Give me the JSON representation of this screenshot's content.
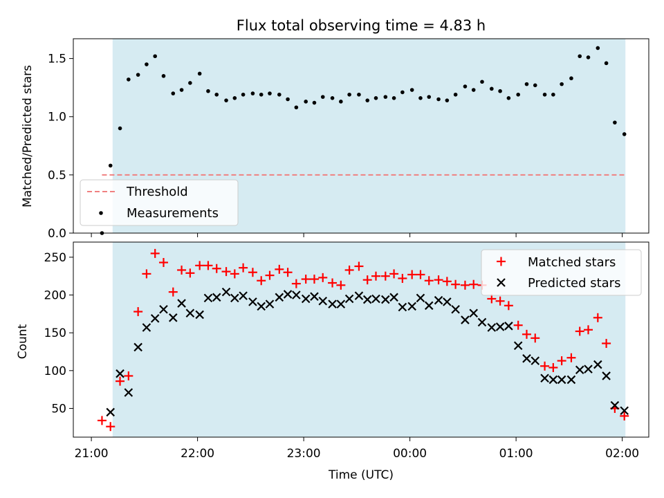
{
  "chart_data": [
    {
      "type": "scatter",
      "title": "Flux total observing time = 4.83 h",
      "xlabel": "",
      "ylabel": "Matched/Predicted stars",
      "x_unit": "hours since 21:00 UTC",
      "xlim": [
        -0.17,
        5.25
      ],
      "ylim": [
        0.0,
        1.67
      ],
      "yticks": [
        0.0,
        0.5,
        1.0,
        1.5
      ],
      "ytick_labels": [
        "0.0",
        "0.5",
        "1.0",
        "1.5"
      ],
      "observing_window": [
        0.2,
        5.03
      ],
      "legend": {
        "position": "lower-left",
        "entries": [
          "Threshold",
          "Measurements"
        ]
      },
      "threshold": {
        "name": "Threshold",
        "value": 0.5,
        "x_range": [
          0.1,
          5.03
        ],
        "color": "#f08080"
      },
      "series": [
        {
          "name": "Measurements",
          "marker": "dot",
          "color": "#000000",
          "points": [
            [
              0.1,
              0.0
            ],
            [
              0.18,
              0.58
            ],
            [
              0.27,
              0.9
            ],
            [
              0.35,
              1.32
            ],
            [
              0.44,
              1.36
            ],
            [
              0.52,
              1.45
            ],
            [
              0.6,
              1.52
            ],
            [
              0.68,
              1.35
            ],
            [
              0.77,
              1.2
            ],
            [
              0.85,
              1.23
            ],
            [
              0.93,
              1.29
            ],
            [
              1.02,
              1.37
            ],
            [
              1.1,
              1.22
            ],
            [
              1.18,
              1.19
            ],
            [
              1.27,
              1.14
            ],
            [
              1.35,
              1.16
            ],
            [
              1.43,
              1.19
            ],
            [
              1.52,
              1.2
            ],
            [
              1.6,
              1.19
            ],
            [
              1.68,
              1.2
            ],
            [
              1.77,
              1.19
            ],
            [
              1.85,
              1.15
            ],
            [
              1.93,
              1.08
            ],
            [
              2.02,
              1.13
            ],
            [
              2.1,
              1.12
            ],
            [
              2.18,
              1.17
            ],
            [
              2.27,
              1.16
            ],
            [
              2.35,
              1.13
            ],
            [
              2.43,
              1.19
            ],
            [
              2.52,
              1.19
            ],
            [
              2.6,
              1.14
            ],
            [
              2.68,
              1.16
            ],
            [
              2.77,
              1.17
            ],
            [
              2.85,
              1.16
            ],
            [
              2.93,
              1.21
            ],
            [
              3.02,
              1.23
            ],
            [
              3.1,
              1.16
            ],
            [
              3.18,
              1.17
            ],
            [
              3.27,
              1.15
            ],
            [
              3.35,
              1.14
            ],
            [
              3.43,
              1.19
            ],
            [
              3.52,
              1.26
            ],
            [
              3.6,
              1.23
            ],
            [
              3.68,
              1.3
            ],
            [
              3.77,
              1.24
            ],
            [
              3.85,
              1.22
            ],
            [
              3.93,
              1.16
            ],
            [
              4.02,
              1.19
            ],
            [
              4.1,
              1.28
            ],
            [
              4.18,
              1.27
            ],
            [
              4.27,
              1.19
            ],
            [
              4.35,
              1.19
            ],
            [
              4.43,
              1.28
            ],
            [
              4.52,
              1.33
            ],
            [
              4.6,
              1.52
            ],
            [
              4.68,
              1.51
            ],
            [
              4.77,
              1.59
            ],
            [
              4.85,
              1.46
            ],
            [
              4.93,
              0.95
            ],
            [
              5.02,
              0.85
            ]
          ]
        }
      ]
    },
    {
      "type": "scatter",
      "title": "",
      "xlabel": "Time (UTC)",
      "ylabel": "Count",
      "x_unit": "hours since 21:00 UTC",
      "xlim": [
        -0.17,
        5.25
      ],
      "ylim": [
        12,
        270
      ],
      "yticks": [
        50,
        100,
        150,
        200,
        250
      ],
      "ytick_labels": [
        "50",
        "100",
        "150",
        "200",
        "250"
      ],
      "xticks": [
        0,
        1,
        2,
        3,
        4,
        5
      ],
      "xtick_labels": [
        "21:00",
        "22:00",
        "23:00",
        "00:00",
        "01:00",
        "02:00"
      ],
      "observing_window": [
        0.2,
        5.03
      ],
      "legend": {
        "position": "upper-right",
        "entries": [
          "Matched stars",
          "Predicted stars"
        ]
      },
      "series": [
        {
          "name": "Matched stars",
          "marker": "plus",
          "color": "#ff0000",
          "points": [
            [
              0.1,
              34
            ],
            [
              0.18,
              26
            ],
            [
              0.27,
              86
            ],
            [
              0.35,
              93
            ],
            [
              0.44,
              178
            ],
            [
              0.52,
              228
            ],
            [
              0.6,
              255
            ],
            [
              0.68,
              243
            ],
            [
              0.77,
              204
            ],
            [
              0.85,
              233
            ],
            [
              0.93,
              229
            ],
            [
              1.02,
              239
            ],
            [
              1.1,
              239
            ],
            [
              1.18,
              235
            ],
            [
              1.27,
              231
            ],
            [
              1.35,
              228
            ],
            [
              1.43,
              236
            ],
            [
              1.52,
              230
            ],
            [
              1.6,
              219
            ],
            [
              1.68,
              226
            ],
            [
              1.77,
              234
            ],
            [
              1.85,
              230
            ],
            [
              1.93,
              215
            ],
            [
              2.02,
              221
            ],
            [
              2.1,
              221
            ],
            [
              2.18,
              223
            ],
            [
              2.27,
              216
            ],
            [
              2.35,
              213
            ],
            [
              2.43,
              233
            ],
            [
              2.52,
              238
            ],
            [
              2.6,
              220
            ],
            [
              2.68,
              225
            ],
            [
              2.77,
              225
            ],
            [
              2.85,
              228
            ],
            [
              2.93,
              222
            ],
            [
              3.02,
              227
            ],
            [
              3.1,
              227
            ],
            [
              3.18,
              219
            ],
            [
              3.27,
              220
            ],
            [
              3.35,
              218
            ],
            [
              3.43,
              214
            ],
            [
              3.52,
              213
            ],
            [
              3.6,
              214
            ],
            [
              3.68,
              213
            ],
            [
              3.77,
              195
            ],
            [
              3.85,
              192
            ],
            [
              3.93,
              186
            ],
            [
              4.02,
              160
            ],
            [
              4.1,
              148
            ],
            [
              4.18,
              143
            ],
            [
              4.27,
              106
            ],
            [
              4.35,
              104
            ],
            [
              4.43,
              113
            ],
            [
              4.52,
              117
            ],
            [
              4.6,
              152
            ],
            [
              4.68,
              154
            ],
            [
              4.77,
              170
            ],
            [
              4.85,
              136
            ],
            [
              4.93,
              50
            ],
            [
              5.02,
              40
            ]
          ]
        },
        {
          "name": "Predicted stars",
          "marker": "cross",
          "color": "#000000",
          "points": [
            [
              0.18,
              45
            ],
            [
              0.27,
              96
            ],
            [
              0.35,
              71
            ],
            [
              0.44,
              131
            ],
            [
              0.52,
              157
            ],
            [
              0.6,
              169
            ],
            [
              0.68,
              181
            ],
            [
              0.77,
              170
            ],
            [
              0.85,
              189
            ],
            [
              0.93,
              176
            ],
            [
              1.02,
              174
            ],
            [
              1.1,
              196
            ],
            [
              1.18,
              197
            ],
            [
              1.27,
              204
            ],
            [
              1.35,
              196
            ],
            [
              1.43,
              199
            ],
            [
              1.52,
              191
            ],
            [
              1.6,
              185
            ],
            [
              1.68,
              188
            ],
            [
              1.77,
              197
            ],
            [
              1.85,
              201
            ],
            [
              1.93,
              200
            ],
            [
              2.02,
              195
            ],
            [
              2.1,
              198
            ],
            [
              2.18,
              192
            ],
            [
              2.27,
              188
            ],
            [
              2.35,
              188
            ],
            [
              2.43,
              195
            ],
            [
              2.52,
              199
            ],
            [
              2.6,
              194
            ],
            [
              2.68,
              195
            ],
            [
              2.77,
              194
            ],
            [
              2.85,
              197
            ],
            [
              2.93,
              184
            ],
            [
              3.02,
              185
            ],
            [
              3.1,
              196
            ],
            [
              3.18,
              186
            ],
            [
              3.27,
              193
            ],
            [
              3.35,
              191
            ],
            [
              3.43,
              181
            ],
            [
              3.52,
              167
            ],
            [
              3.6,
              176
            ],
            [
              3.68,
              164
            ],
            [
              3.77,
              157
            ],
            [
              3.85,
              158
            ],
            [
              3.93,
              159
            ],
            [
              4.02,
              133
            ],
            [
              4.1,
              116
            ],
            [
              4.18,
              113
            ],
            [
              4.27,
              90
            ],
            [
              4.35,
              88
            ],
            [
              4.43,
              88
            ],
            [
              4.52,
              88
            ],
            [
              4.6,
              101
            ],
            [
              4.68,
              102
            ],
            [
              4.77,
              108
            ],
            [
              4.85,
              93
            ],
            [
              4.93,
              54
            ],
            [
              5.02,
              47
            ]
          ]
        }
      ]
    }
  ]
}
